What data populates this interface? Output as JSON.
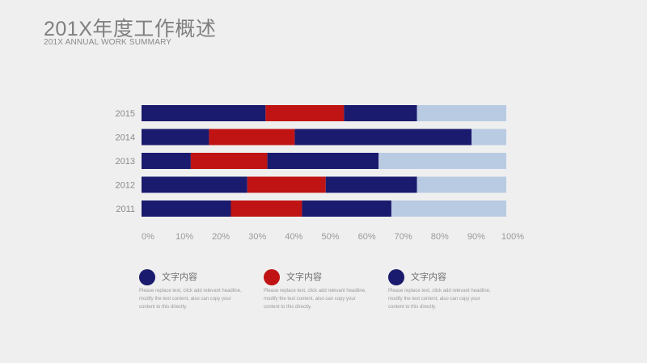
{
  "header": {
    "title": "201X年度工作概述",
    "subtitle": "201X ANNUAL WORK SUMMARY"
  },
  "chart_data": {
    "type": "bar",
    "orientation": "horizontal",
    "stacked": true,
    "categories": [
      "2015",
      "2014",
      "2013",
      "2012",
      "2011"
    ],
    "series": [
      {
        "color": "#1a1a6e",
        "values": [
          34,
          18.5,
          13.5,
          29,
          24.5
        ]
      },
      {
        "color": "#c01414",
        "values": [
          21.5,
          23.5,
          21,
          21.5,
          19.5
        ]
      },
      {
        "color": "#1a1a6e",
        "values": [
          20,
          48.5,
          30.5,
          25,
          24.5
        ]
      },
      {
        "color": "#b9cbe3",
        "values": [
          24.5,
          9.5,
          35,
          24.5,
          31.5
        ]
      }
    ],
    "xticks": [
      "0%",
      "10%",
      "20%",
      "30%",
      "40%",
      "50%",
      "60%",
      "70%",
      "80%",
      "90%",
      "100%"
    ],
    "xlim": [
      0,
      100
    ],
    "grid": false
  },
  "legend": [
    {
      "label": "文字内容",
      "color": "#1a1a6e",
      "desc": "Please replace text, click add relevant headline, modify the text content, also can copy your content to this directly."
    },
    {
      "label": "文字内容",
      "color": "#c01414",
      "desc": "Please replace text, click add relevant headline, modify the text content, also can copy your content to this directly."
    },
    {
      "label": "文字内容",
      "color": "#1a1a6e",
      "desc": "Please replace text, click add relevant headline, modify the text content, also can copy your content to this directly."
    }
  ]
}
